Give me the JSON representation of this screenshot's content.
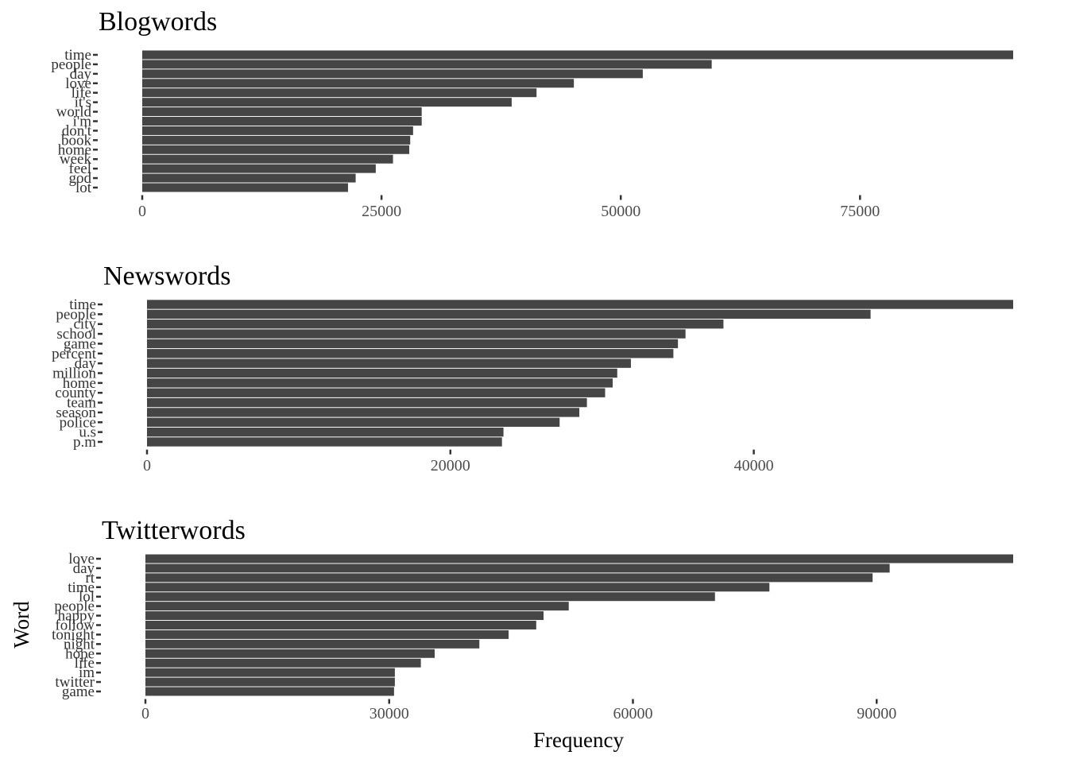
{
  "chart_data": [
    {
      "type": "bar",
      "orientation": "horizontal",
      "title": "Blogwords",
      "categories": [
        "time",
        "people",
        "day",
        "love",
        "life",
        "it's",
        "world",
        "i'm",
        "don't",
        "book",
        "home",
        "week",
        "feel",
        "god",
        "lot"
      ],
      "values": [
        91000,
        59500,
        52300,
        45100,
        41200,
        38600,
        29200,
        29200,
        28300,
        28000,
        27900,
        26200,
        24400,
        22300,
        21500
      ],
      "ticks": [
        0,
        25000,
        50000,
        75000
      ],
      "xlim": [
        0,
        91000
      ]
    },
    {
      "type": "bar",
      "orientation": "horizontal",
      "title": "Newswords",
      "categories": [
        "time",
        "people",
        "city",
        "school",
        "game",
        "percent",
        "day",
        "million",
        "home",
        "county",
        "team",
        "season",
        "police",
        "u.s",
        "p.m"
      ],
      "values": [
        57100,
        47700,
        38000,
        35500,
        35000,
        34700,
        31900,
        31000,
        30700,
        30200,
        29000,
        28500,
        27200,
        23500,
        23400
      ],
      "ticks": [
        0,
        20000,
        40000
      ],
      "xlim": [
        0,
        57100
      ]
    },
    {
      "type": "bar",
      "orientation": "horizontal",
      "title": "Twitterwords",
      "categories": [
        "love",
        "day",
        "rt",
        "time",
        "lol",
        "people",
        "happy",
        "follow",
        "tonight",
        "night",
        "hope",
        "life",
        "im",
        "twitter",
        "game"
      ],
      "values": [
        106800,
        91600,
        89500,
        76800,
        70100,
        52100,
        49000,
        48100,
        44700,
        41100,
        35600,
        33900,
        30700,
        30700,
        30600
      ],
      "ticks": [
        0,
        30000,
        60000,
        90000
      ],
      "xlim": [
        0,
        106800
      ]
    }
  ],
  "axes": {
    "xlabel": "Frequency",
    "ylabel": "Word"
  },
  "colors": {
    "bar": "#454545",
    "tick": "#333333"
  }
}
